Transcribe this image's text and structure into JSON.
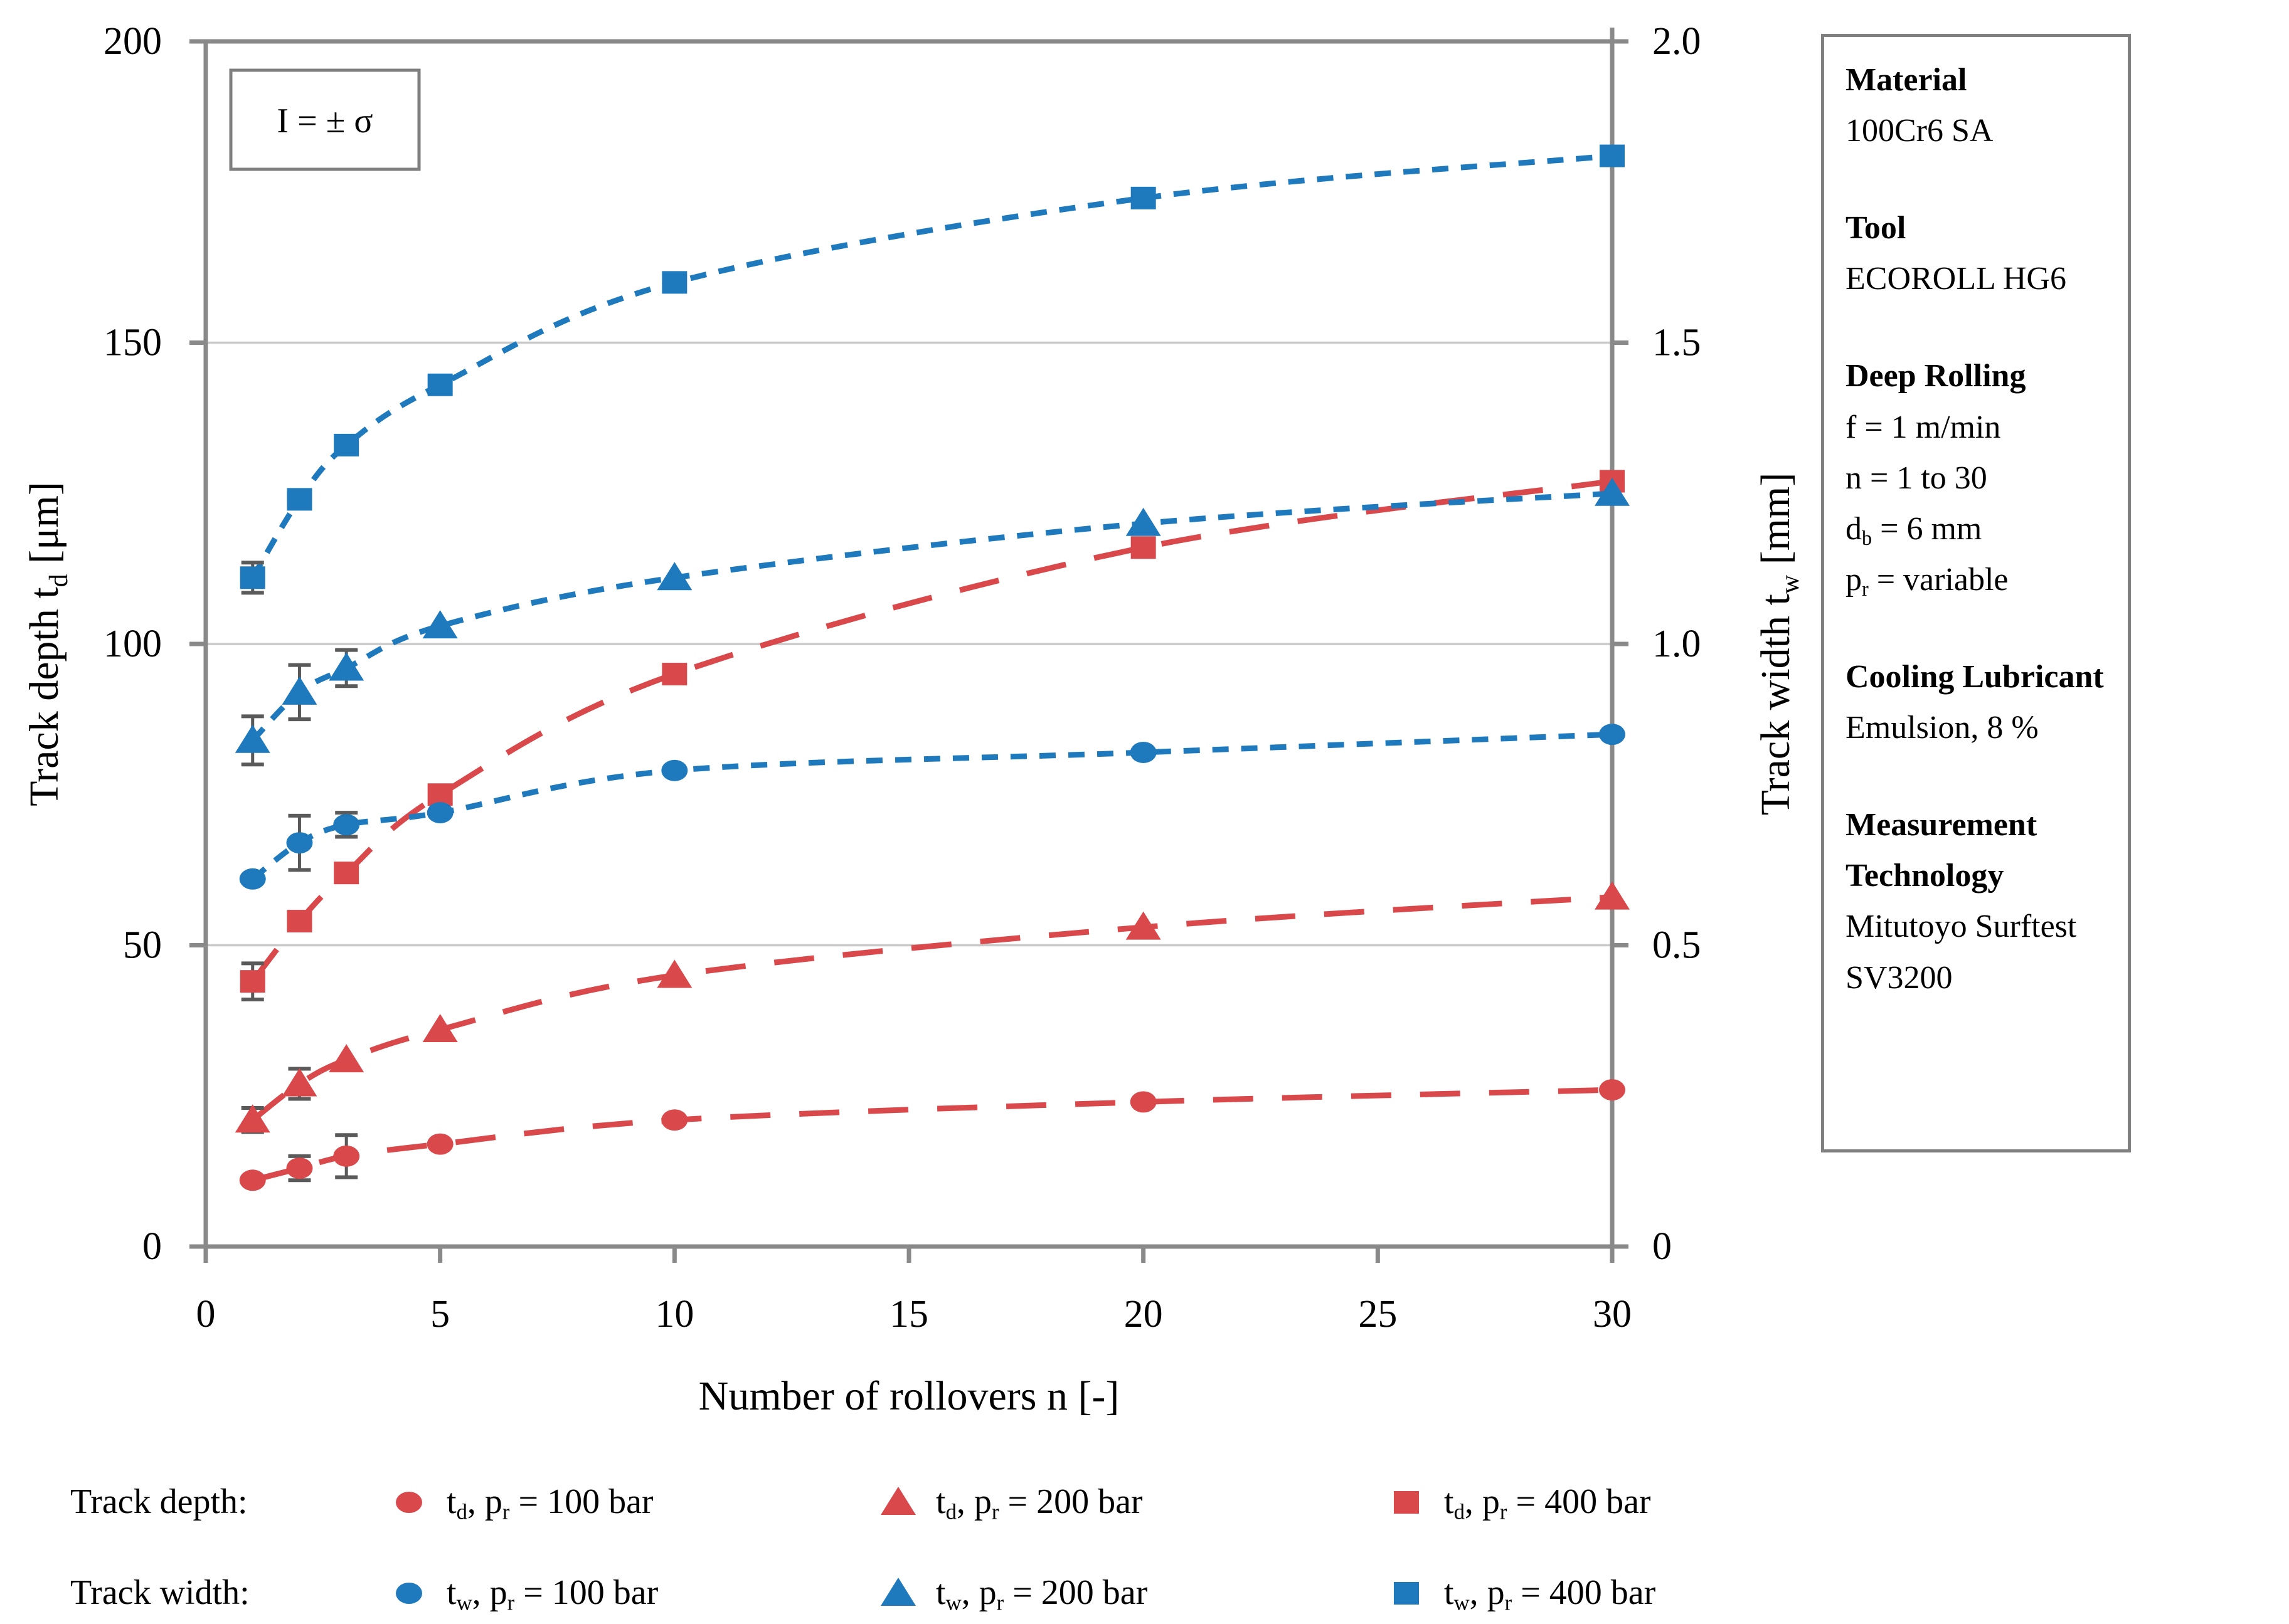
{
  "annotation": {
    "text": "I = ± σ"
  },
  "colors": {
    "red": "#D9484B",
    "blue": "#1F7ABD",
    "axis": "#898989",
    "grid": "#C9C9C9",
    "error": "#5A5A5A",
    "box_border": "#7F7F7F",
    "text": "#000000"
  },
  "axes": {
    "x": {
      "title": {
        "pre": "Number of rollovers n [-]",
        "sub": "",
        "post": ""
      },
      "tick_labels": [
        "0",
        "5",
        "10",
        "15",
        "20",
        "25",
        "30"
      ],
      "tick_values": [
        0,
        5,
        10,
        15,
        20,
        25,
        30
      ],
      "range": [
        0,
        30
      ]
    },
    "y_left": {
      "title": {
        "pre": "Track depth t",
        "sub": "d",
        "post": " [μm]"
      },
      "tick_labels": [
        "0",
        "50",
        "100",
        "150",
        "200"
      ],
      "tick_values": [
        0,
        50,
        100,
        150,
        200
      ],
      "range": [
        0,
        200
      ]
    },
    "y_right": {
      "title": {
        "pre": "Track width t",
        "sub": "w",
        "post": " [mm]"
      },
      "tick_labels": [
        "0",
        "0.5",
        "1.0",
        "1.5",
        "2.0"
      ],
      "tick_values": [
        0,
        0.5,
        1.0,
        1.5,
        2.0
      ],
      "range": [
        0,
        2
      ]
    }
  },
  "chart_data": {
    "type": "line",
    "x": [
      1,
      2,
      3,
      5,
      10,
      20,
      30
    ],
    "grid_values_left": [
      50,
      100,
      150
    ],
    "series": [
      {
        "name": "td_pr100",
        "label": "td, pr = 100 bar",
        "axis": "left",
        "color_key": "red",
        "marker": "circle",
        "dash": "long",
        "values": [
          11,
          13,
          15,
          17,
          21,
          24,
          26
        ],
        "sigma": [
          0,
          2,
          3.5,
          0,
          0,
          0,
          0
        ]
      },
      {
        "name": "td_pr200",
        "label": "td, pr = 200 bar",
        "axis": "left",
        "color_key": "red",
        "marker": "triangle",
        "dash": "long",
        "values": [
          21,
          27,
          31,
          36,
          45,
          53,
          58
        ],
        "sigma": [
          2,
          2.5,
          0,
          0,
          0,
          0,
          0
        ]
      },
      {
        "name": "td_pr400",
        "label": "td, pr = 400 bar",
        "axis": "left",
        "color_key": "red",
        "marker": "square",
        "dash": "long",
        "values": [
          44,
          54,
          62,
          75,
          95,
          116,
          127
        ],
        "sigma": [
          3,
          0,
          0,
          0,
          0,
          0,
          0
        ]
      },
      {
        "name": "tw_pr100",
        "label": "tw, pr = 100 bar",
        "axis": "right",
        "color_key": "blue",
        "marker": "circle",
        "dash": "short",
        "values": [
          0.61,
          0.67,
          0.7,
          0.72,
          0.79,
          0.82,
          0.85
        ],
        "sigma": [
          0,
          0.045,
          0.02,
          0,
          0,
          0,
          0
        ]
      },
      {
        "name": "tw_pr200",
        "label": "tw, pr = 200 bar",
        "axis": "right",
        "color_key": "blue",
        "marker": "triangle",
        "dash": "short",
        "values": [
          0.84,
          0.92,
          0.96,
          1.03,
          1.11,
          1.2,
          1.25
        ],
        "sigma": [
          0.04,
          0.045,
          0.03,
          0,
          0,
          0,
          0
        ]
      },
      {
        "name": "tw_pr400",
        "label": "tw, pr = 400 bar",
        "axis": "right",
        "color_key": "blue",
        "marker": "square",
        "dash": "short",
        "values": [
          1.11,
          1.24,
          1.33,
          1.43,
          1.6,
          1.74,
          1.81
        ],
        "sigma": [
          0.025,
          0,
          0,
          0,
          0,
          0,
          0
        ]
      }
    ],
    "legend_position": "bottom",
    "grid": "horizontal-only"
  },
  "legend": {
    "rows": [
      {
        "label": "Track depth:",
        "items": [
          {
            "marker": "circle",
            "color_key": "red",
            "pre": "t",
            "sub": "d",
            "mid": ", p",
            "sub2": "r",
            "post": " = 100 bar"
          },
          {
            "marker": "triangle",
            "color_key": "red",
            "pre": "t",
            "sub": "d",
            "mid": ", p",
            "sub2": "r",
            "post": " = 200 bar"
          },
          {
            "marker": "square",
            "color_key": "red",
            "pre": "t",
            "sub": "d",
            "mid": ", p",
            "sub2": "r",
            "post": " = 400 bar"
          }
        ]
      },
      {
        "label": "Track width:",
        "items": [
          {
            "marker": "circle",
            "color_key": "blue",
            "pre": "t",
            "sub": "w",
            "mid": ", p",
            "sub2": "r",
            "post": " = 100 bar"
          },
          {
            "marker": "triangle",
            "color_key": "blue",
            "pre": "t",
            "sub": "w",
            "mid": ", p",
            "sub2": "r",
            "post": " = 200 bar"
          },
          {
            "marker": "square",
            "color_key": "blue",
            "pre": "t",
            "sub": "w",
            "mid": ", p",
            "sub2": "r",
            "post": " = 400 bar"
          }
        ]
      }
    ]
  },
  "info_panel": {
    "sections": [
      {
        "title": "Material",
        "lines": [
          {
            "text": "100Cr6 SA"
          }
        ]
      },
      {
        "title": "Tool",
        "lines": [
          {
            "text": "ECOROLL HG6"
          }
        ]
      },
      {
        "title": "Deep Rolling",
        "lines": [
          {
            "text": "f = 1 m/min"
          },
          {
            "text": "n = 1 to 30"
          },
          {
            "pre": "d",
            "sub": "b",
            "post": " = 6 mm"
          },
          {
            "pre": "p",
            "sub": "r",
            "post": " = variable"
          }
        ]
      },
      {
        "title": "Cooling Lubricant",
        "lines": [
          {
            "text": "Emulsion, 8 %"
          }
        ]
      },
      {
        "title": "Measurement Technology",
        "lines": [
          {
            "text": "Mitutoyo Surftest"
          },
          {
            "text": "SV3200"
          }
        ]
      }
    ]
  }
}
